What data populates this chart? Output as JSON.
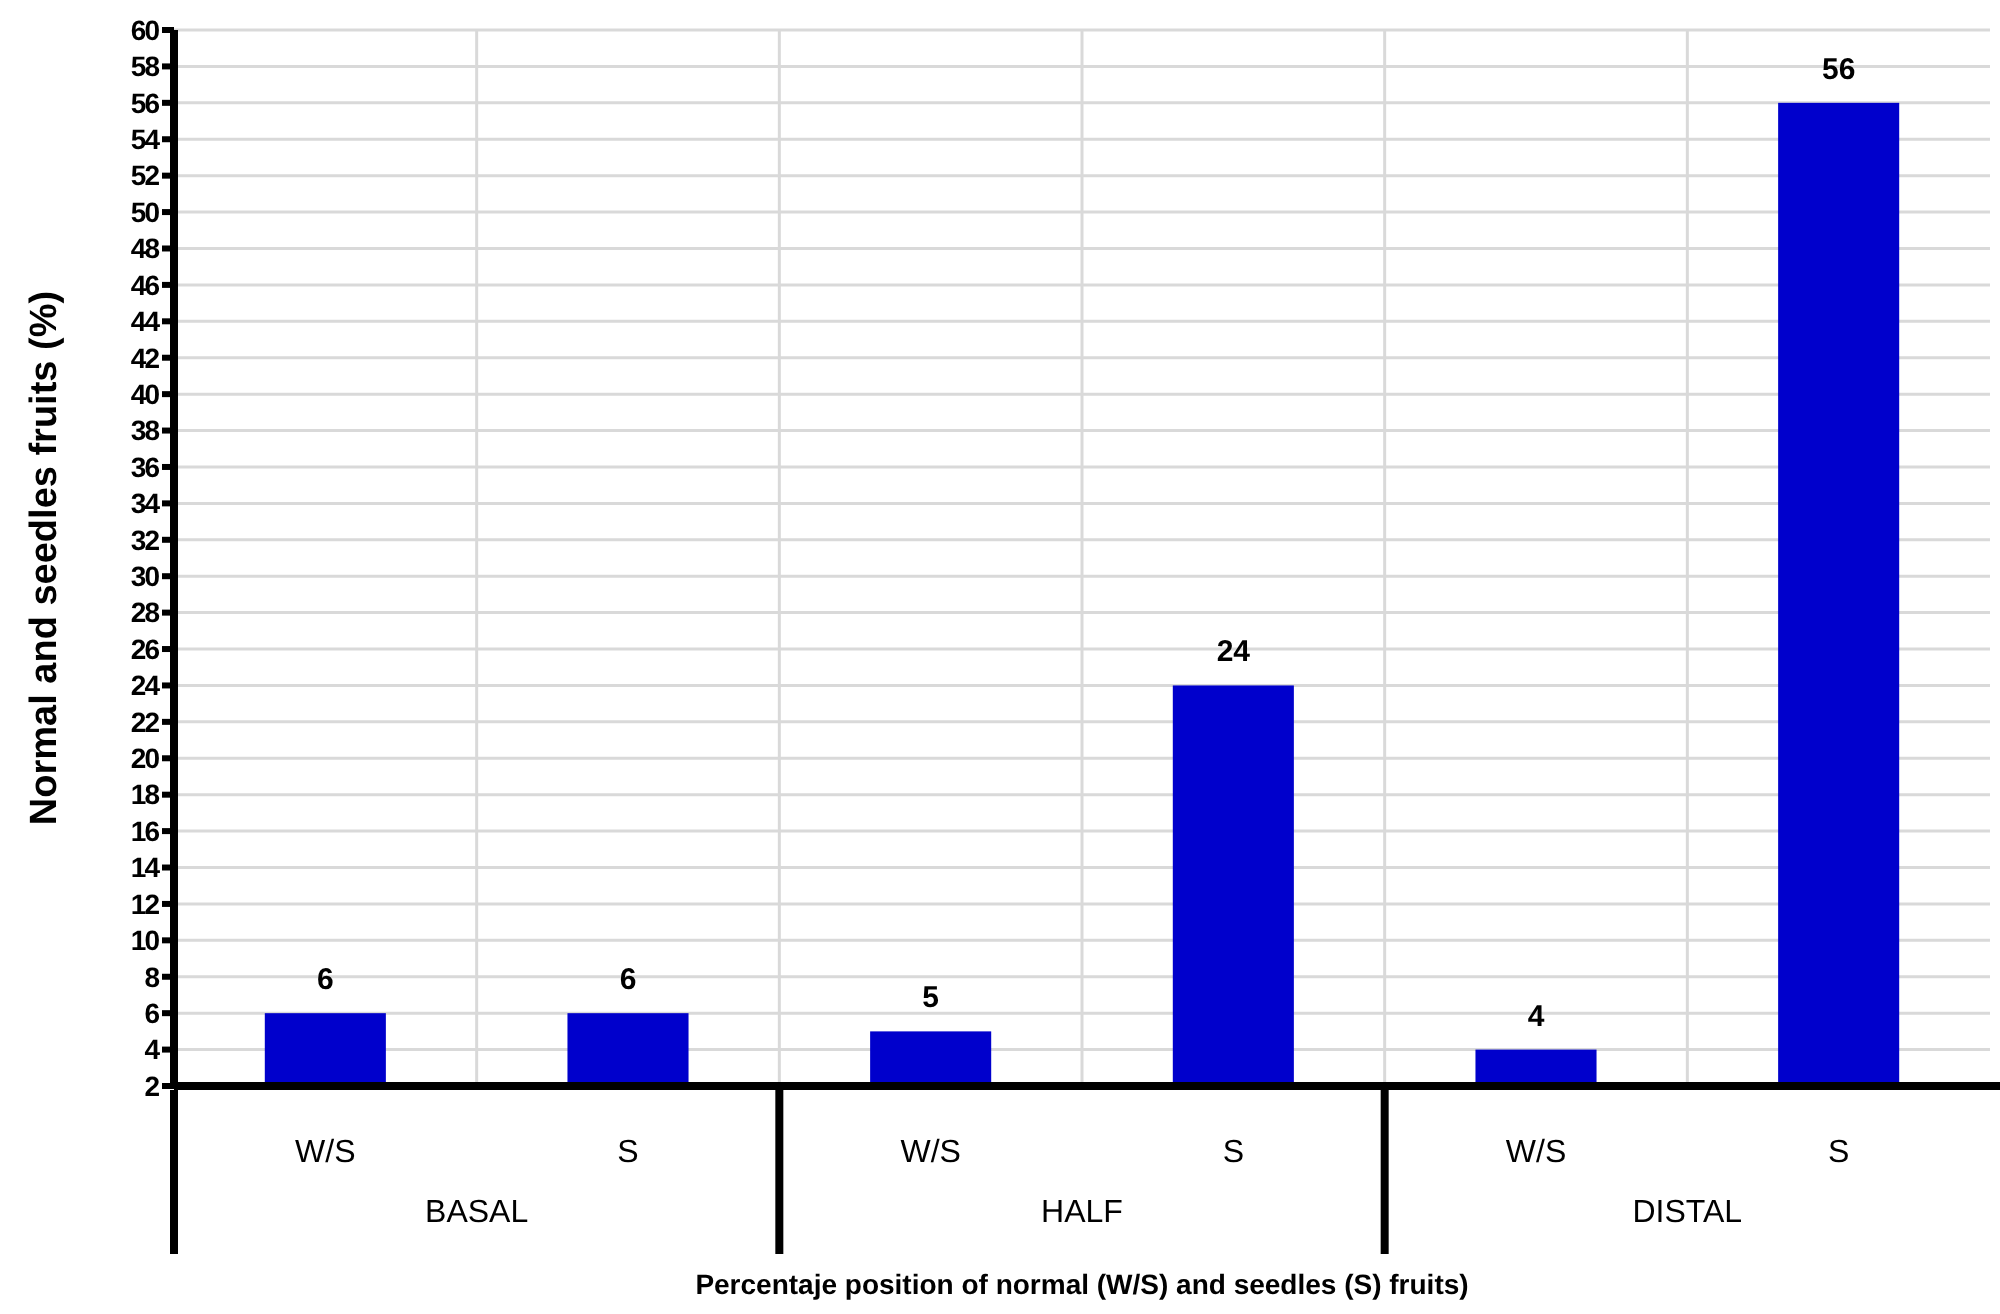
{
  "chart_data": {
    "type": "bar",
    "xlabel": "Percentaje position of normal (W/S) and seedles (S) fruits)",
    "ylabel": "Normal and seedles fruits (%)",
    "categories": [
      "W/S",
      "S",
      "W/S",
      "S",
      "W/S",
      "S"
    ],
    "values": [
      6,
      6,
      5,
      24,
      4,
      56
    ],
    "color": "#0000cc",
    "data_labels": true,
    "ylim": [
      2,
      60
    ],
    "yticks": [
      2,
      4,
      6,
      8,
      10,
      12,
      14,
      16,
      18,
      20,
      22,
      24,
      26,
      28,
      30,
      32,
      34,
      36,
      38,
      40,
      42,
      44,
      46,
      48,
      50,
      52,
      54,
      56,
      58,
      60
    ],
    "grid": true,
    "annotations": [
      "BASAL",
      "HALF",
      "DISTAL"
    ]
  }
}
